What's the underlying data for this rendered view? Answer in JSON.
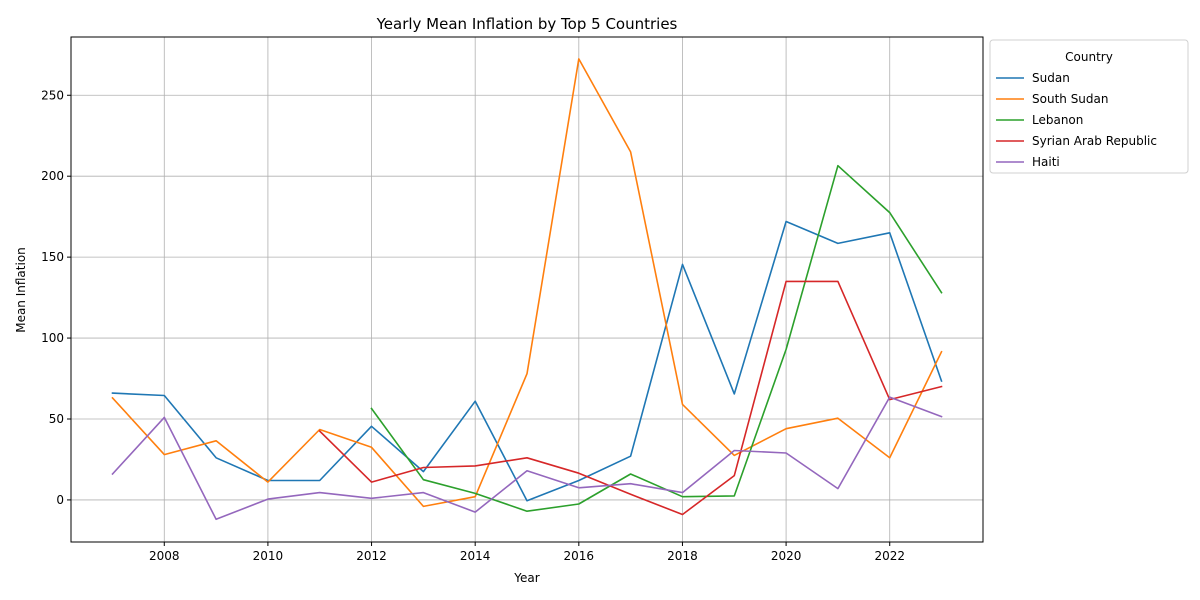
{
  "chart_data": {
    "type": "line",
    "title": "Yearly Mean Inflation by Top 5 Countries",
    "xlabel": "Year",
    "ylabel": "Mean Inflation",
    "xlim": [
      2006.2,
      2023.8
    ],
    "ylim": [
      -26,
      286
    ],
    "xticks": [
      2008,
      2010,
      2012,
      2014,
      2016,
      2018,
      2020,
      2022
    ],
    "yticks": [
      0,
      50,
      100,
      150,
      200,
      250
    ],
    "grid": true,
    "legend": {
      "title": "Country",
      "placement": "outside-top-right"
    },
    "series": [
      {
        "name": "Sudan",
        "color": "#1f77b4",
        "points": [
          [
            2007,
            66
          ],
          [
            2008,
            64.5
          ],
          [
            2009,
            26
          ],
          [
            2010,
            12
          ],
          [
            2011,
            12
          ],
          [
            2012,
            45.5
          ],
          [
            2013,
            17.5
          ],
          [
            2014,
            61
          ],
          [
            2015,
            -0.5
          ],
          [
            2016,
            12
          ],
          [
            2017,
            27
          ],
          [
            2018,
            145.5
          ],
          [
            2019,
            65.5
          ],
          [
            2020,
            172
          ],
          [
            2021,
            158.5
          ],
          [
            2022,
            165
          ],
          [
            2023,
            73.5
          ]
        ]
      },
      {
        "name": "South Sudan",
        "color": "#ff7f0e",
        "points": [
          [
            2007,
            63
          ],
          [
            2008,
            28
          ],
          [
            2009,
            36.5
          ],
          [
            2010,
            11
          ],
          [
            2011,
            43.5
          ],
          [
            2012,
            32.5
          ],
          [
            2013,
            -4
          ],
          [
            2014,
            2
          ],
          [
            2015,
            78
          ],
          [
            2016,
            272.5
          ],
          [
            2017,
            215
          ],
          [
            2018,
            59
          ],
          [
            2019,
            27.5
          ],
          [
            2020,
            44
          ],
          [
            2021,
            50.5
          ],
          [
            2022,
            26
          ],
          [
            2023,
            91.5
          ]
        ]
      },
      {
        "name": "Lebanon",
        "color": "#2ca02c",
        "points": [
          [
            2012,
            56.5
          ],
          [
            2013,
            12.5
          ],
          [
            2014,
            4
          ],
          [
            2015,
            -7
          ],
          [
            2016,
            -2.5
          ],
          [
            2017,
            16
          ],
          [
            2018,
            2
          ],
          [
            2019,
            2.5
          ],
          [
            2020,
            93
          ],
          [
            2021,
            206.5
          ],
          [
            2022,
            177.5
          ],
          [
            2023,
            128
          ]
        ]
      },
      {
        "name": "Syrian Arab Republic",
        "color": "#d62728",
        "points": [
          [
            2011,
            42.5
          ],
          [
            2012,
            11
          ],
          [
            2013,
            20
          ],
          [
            2014,
            21
          ],
          [
            2015,
            26
          ],
          [
            2016,
            16.5
          ],
          [
            2017,
            3.5
          ],
          [
            2018,
            -9
          ],
          [
            2019,
            15
          ],
          [
            2020,
            135
          ],
          [
            2021,
            135
          ],
          [
            2022,
            62
          ],
          [
            2023,
            70
          ]
        ]
      },
      {
        "name": "Haiti",
        "color": "#9467bd",
        "points": [
          [
            2007,
            16
          ],
          [
            2008,
            51
          ],
          [
            2009,
            -12
          ],
          [
            2010,
            0.5
          ],
          [
            2011,
            4.5
          ],
          [
            2012,
            1
          ],
          [
            2013,
            4.5
          ],
          [
            2014,
            -7.5
          ],
          [
            2015,
            18
          ],
          [
            2016,
            7.5
          ],
          [
            2017,
            10
          ],
          [
            2018,
            4.5
          ],
          [
            2019,
            30.5
          ],
          [
            2020,
            29
          ],
          [
            2021,
            7
          ],
          [
            2022,
            63.5
          ],
          [
            2023,
            51.5
          ]
        ]
      }
    ]
  }
}
